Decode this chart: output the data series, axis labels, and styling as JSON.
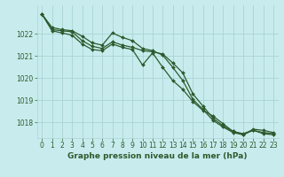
{
  "title": "Graphe pression niveau de la mer (hPa)",
  "background_color": "#c8eced",
  "grid_color": "#aad4d4",
  "line_color": "#2d5a2d",
  "xlim_min": -0.5,
  "xlim_max": 23.5,
  "ylim_min": 1017.3,
  "ylim_max": 1023.3,
  "yticks": [
    1018,
    1019,
    1020,
    1021,
    1022
  ],
  "xticks": [
    0,
    1,
    2,
    3,
    4,
    5,
    6,
    7,
    8,
    9,
    10,
    11,
    12,
    13,
    14,
    15,
    16,
    17,
    18,
    19,
    20,
    21,
    22,
    23
  ],
  "series1": [
    1022.9,
    1022.3,
    1022.2,
    1022.15,
    1021.9,
    1021.6,
    1021.5,
    1022.05,
    1021.85,
    1021.7,
    1021.35,
    1021.25,
    1021.05,
    1020.5,
    1019.9,
    1019.05,
    1018.6,
    1018.1,
    1017.8,
    1017.55,
    1017.45,
    1017.7,
    1017.65,
    1017.55
  ],
  "series2": [
    1022.9,
    1022.2,
    1022.15,
    1022.1,
    1021.7,
    1021.45,
    1021.35,
    1021.65,
    1021.5,
    1021.4,
    1021.25,
    1021.2,
    1021.1,
    1020.7,
    1020.25,
    1019.3,
    1018.75,
    1018.2,
    1017.85,
    1017.6,
    1017.45,
    1017.65,
    1017.55,
    1017.5
  ],
  "series3": [
    1022.9,
    1022.15,
    1022.05,
    1021.95,
    1021.55,
    1021.3,
    1021.25,
    1021.55,
    1021.4,
    1021.3,
    1020.6,
    1021.15,
    1020.5,
    1019.9,
    1019.5,
    1018.95,
    1018.55,
    1018.3,
    1017.95,
    1017.6,
    1017.5,
    1017.65,
    1017.5,
    1017.45
  ],
  "tick_fontsize": 5.5,
  "label_fontsize": 6.5,
  "linewidth": 0.9,
  "markersize": 2.0
}
